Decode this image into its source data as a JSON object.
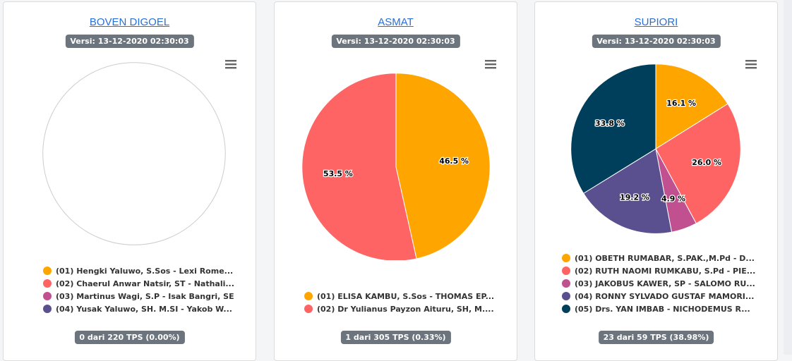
{
  "colors": {
    "c01": "#ffa500",
    "c02": "#ff6464",
    "c03": "#c0508f",
    "c04": "#5a4f8f",
    "c05": "#003f5c"
  },
  "cards": [
    {
      "title": "BOVEN DIGOEL",
      "version": "Versi: 13-12-2020 02:30:03",
      "tps": "0 dari 220 TPS (0.00%)",
      "legend": [
        {
          "label": "(01) Hengki Yaluwo, S.Sos - Lexi Rome...",
          "color": "#ffa500"
        },
        {
          "label": "(02) Chaerul Anwar Natsir, ST - Nathali...",
          "color": "#ff6464"
        },
        {
          "label": "(03) Martinus Wagi, S.P - Isak Bangri, SE",
          "color": "#c0508f"
        },
        {
          "label": "(04) Yusak Yaluwo, SH. M.SI - Yakob W...",
          "color": "#5a4f8f"
        }
      ]
    },
    {
      "title": "ASMAT",
      "version": "Versi: 13-12-2020 02:30:03",
      "tps": "1 dari 305 TPS (0.33%)",
      "legend": [
        {
          "label": "(01) ELISA KAMBU, S.Sos - THOMAS EP...",
          "color": "#ffa500"
        },
        {
          "label": "(02) Dr Yulianus Payzon Aituru, SH, M....",
          "color": "#ff6464"
        }
      ]
    },
    {
      "title": "SUPIORI",
      "version": "Versi: 13-12-2020 02:30:03",
      "tps": "23 dari 59 TPS (38.98%)",
      "legend": [
        {
          "label": "(01) OBETH RUMABAR, S.PAK.,M.Pd - D...",
          "color": "#ffa500"
        },
        {
          "label": "(02) RUTH NAOMI RUMKABU, S.Pd - PIE...",
          "color": "#ff6464"
        },
        {
          "label": "(03) JAKOBUS KAWER, SP - SALOMO RU...",
          "color": "#c0508f"
        },
        {
          "label": "(04) RONNY SYLVADO GUSTAF MAMORI...",
          "color": "#5a4f8f"
        },
        {
          "label": "(05) Drs. YAN IMBAB - NICHODEMUS R...",
          "color": "#003f5c"
        }
      ]
    }
  ],
  "chart_data": [
    {
      "type": "pie",
      "title": "BOVEN DIGOEL",
      "categories": [
        "(01)",
        "(02)",
        "(03)",
        "(04)"
      ],
      "values": [],
      "colors": [
        "#ffa500",
        "#ff6464",
        "#c0508f",
        "#5a4f8f"
      ],
      "labels": []
    },
    {
      "type": "pie",
      "title": "ASMAT",
      "categories": [
        "(01)",
        "(02)"
      ],
      "values": [
        46.5,
        53.5
      ],
      "colors": [
        "#ffa500",
        "#ff6464"
      ],
      "labels": [
        "46.5 %",
        "53.5 %"
      ]
    },
    {
      "type": "pie",
      "title": "SUPIORI",
      "categories": [
        "(01)",
        "(02)",
        "(03)",
        "(04)",
        "(05)"
      ],
      "values": [
        16.1,
        26.0,
        4.9,
        19.2,
        33.8
      ],
      "colors": [
        "#ffa500",
        "#ff6464",
        "#c0508f",
        "#5a4f8f",
        "#003f5c"
      ],
      "labels": [
        "16.1 %",
        "26.0 %",
        "4.9 %",
        "19.2 %",
        "33.8 %"
      ]
    }
  ]
}
